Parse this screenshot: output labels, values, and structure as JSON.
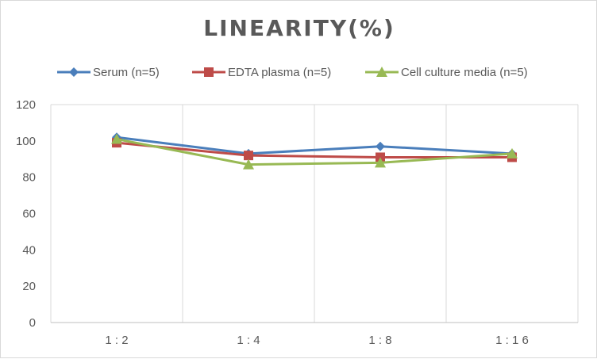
{
  "chart_data": {
    "type": "line",
    "title": "LINEARITY(%)",
    "xlabel": "",
    "ylabel": "",
    "categories": [
      "1:2",
      "1:4",
      "1:8",
      "1:16"
    ],
    "ylim": [
      0,
      120
    ],
    "yticks": [
      0,
      20,
      40,
      60,
      80,
      100,
      120
    ],
    "grid": "vertical",
    "legend_position": "top",
    "series": [
      {
        "name": "Serum (n=5)",
        "color": "#4a7ebb",
        "marker": "diamond",
        "values": [
          102,
          93,
          97,
          93
        ]
      },
      {
        "name": "EDTA plasma (n=5)",
        "color": "#be4b48",
        "marker": "square",
        "values": [
          99,
          92,
          91,
          91
        ]
      },
      {
        "name": "Cell culture media (n=5)",
        "color": "#98b954",
        "marker": "triangle",
        "values": [
          101,
          87,
          88,
          93
        ]
      }
    ]
  }
}
